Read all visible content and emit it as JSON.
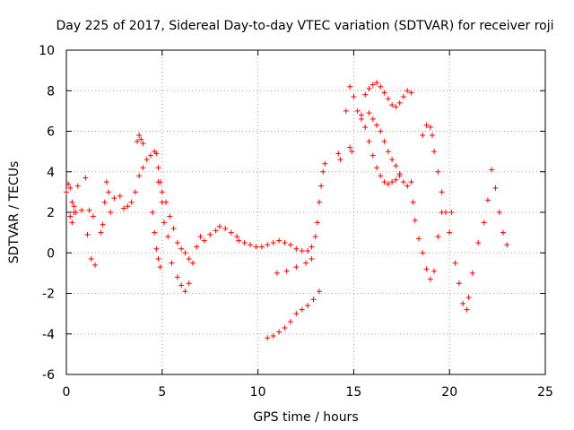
{
  "chart_data": {
    "type": "scatter",
    "title": "Day 225 of 2017, Sidereal Day-to-day VTEC variation (SDTVAR) for receiver roji",
    "xlabel": "GPS time / hours",
    "ylabel": "SDTVAR / TECUs",
    "xlim": [
      0,
      25
    ],
    "ylim": [
      -6,
      10
    ],
    "xticks": [
      "0",
      "5",
      "10",
      "15",
      "20",
      "25"
    ],
    "yticks": [
      "-6",
      "-4",
      "-2",
      "0",
      "2",
      "4",
      "6",
      "8",
      "10"
    ],
    "grid": true,
    "marker": "+",
    "color": "#ff0000",
    "series": [
      {
        "name": "SDTVAR",
        "x": [
          0.0,
          0.1,
          0.2,
          0.3,
          0.4,
          0.2,
          0.3,
          0.4,
          0.5,
          0.6,
          0.8,
          1.0,
          1.1,
          1.2,
          1.3,
          1.4,
          1.5,
          1.8,
          1.9,
          2.0,
          2.1,
          2.2,
          2.3,
          2.5,
          2.8,
          3.0,
          3.2,
          3.4,
          3.6,
          3.8,
          4.0,
          4.2,
          4.4,
          4.6,
          4.7,
          4.8,
          4.9,
          3.7,
          3.8,
          3.9,
          4.0,
          4.5,
          4.6,
          4.7,
          4.8,
          4.9,
          5.0,
          5.1,
          5.3,
          5.5,
          5.8,
          6.0,
          6.2,
          6.4,
          4.8,
          5.0,
          5.2,
          5.4,
          5.6,
          5.8,
          6.0,
          6.2,
          6.4,
          6.6,
          6.8,
          7.0,
          7.2,
          7.5,
          7.8,
          8.0,
          8.3,
          8.6,
          8.9,
          9.0,
          9.3,
          9.6,
          9.9,
          10.2,
          10.5,
          10.8,
          11.1,
          11.4,
          11.7,
          12.0,
          12.3,
          12.6,
          12.8,
          13.0,
          10.5,
          10.8,
          11.1,
          11.4,
          11.7,
          12.0,
          12.3,
          12.6,
          12.9,
          13.2,
          11.0,
          11.5,
          12.0,
          12.5,
          12.8,
          13.1,
          13.2,
          13.3,
          13.4,
          13.5,
          14.2,
          14.3,
          14.8,
          14.9,
          14.6,
          14.8,
          15.0,
          15.2,
          15.4,
          15.6,
          15.8,
          16.0,
          16.2,
          16.4,
          16.6,
          16.8,
          17.0,
          17.2,
          17.4,
          17.6,
          17.8,
          18.0,
          15.4,
          15.6,
          15.8,
          16.0,
          16.2,
          16.4,
          16.6,
          16.8,
          17.0,
          17.2,
          17.4,
          15.8,
          16.0,
          16.2,
          16.4,
          16.6,
          16.8,
          17.0,
          17.2,
          17.4,
          17.6,
          17.8,
          18.0,
          18.1,
          18.2,
          18.4,
          18.6,
          18.8,
          19.0,
          19.2,
          19.4,
          19.6,
          18.6,
          18.8,
          19.0,
          19.1,
          19.2,
          19.4,
          19.6,
          19.8,
          20.0,
          20.1,
          20.3,
          20.5,
          20.7,
          20.9,
          21.0,
          21.2,
          21.5,
          21.8,
          22.0,
          22.2,
          22.4,
          22.6,
          22.8,
          23.0
        ],
        "y": [
          3.0,
          3.4,
          3.2,
          2.5,
          2.0,
          1.8,
          1.5,
          2.3,
          2.0,
          3.3,
          2.1,
          3.7,
          0.9,
          2.1,
          -0.3,
          1.8,
          -0.6,
          1.0,
          1.4,
          2.5,
          3.5,
          3.0,
          2.0,
          2.7,
          2.8,
          2.2,
          2.3,
          2.5,
          3.0,
          3.8,
          4.2,
          4.6,
          4.8,
          5.0,
          4.9,
          4.2,
          3.5,
          5.5,
          5.8,
          5.6,
          5.4,
          2.0,
          1.0,
          0.2,
          -0.3,
          -0.7,
          2.5,
          1.5,
          0.8,
          -0.5,
          -1.2,
          -1.6,
          -1.9,
          -1.5,
          3.5,
          3.0,
          2.5,
          1.8,
          1.2,
          0.5,
          0.2,
          0.0,
          -0.3,
          -0.5,
          0.3,
          0.8,
          0.6,
          0.9,
          1.1,
          1.3,
          1.2,
          1.0,
          0.8,
          0.6,
          0.5,
          0.4,
          0.3,
          0.3,
          0.4,
          0.5,
          0.6,
          0.5,
          0.4,
          0.2,
          0.1,
          0.1,
          0.3,
          0.8,
          -4.2,
          -4.1,
          -3.9,
          -3.7,
          -3.4,
          -3.0,
          -2.8,
          -2.6,
          -2.3,
          -1.9,
          -1.0,
          -0.9,
          -0.7,
          -0.5,
          -0.3,
          1.5,
          2.5,
          3.3,
          4.0,
          4.4,
          4.9,
          4.6,
          5.2,
          5.0,
          7.0,
          8.2,
          7.7,
          7.0,
          6.6,
          7.8,
          8.1,
          8.3,
          8.4,
          8.2,
          7.9,
          7.6,
          7.3,
          7.2,
          7.4,
          7.7,
          8.0,
          7.9,
          6.8,
          6.2,
          5.5,
          4.8,
          4.2,
          3.8,
          3.5,
          3.4,
          3.5,
          3.6,
          3.9,
          6.9,
          6.6,
          6.3,
          6.0,
          5.5,
          5.0,
          4.6,
          4.3,
          3.8,
          3.5,
          3.3,
          3.5,
          2.5,
          1.6,
          0.7,
          0.0,
          -0.8,
          -1.3,
          -0.9,
          0.8,
          2.0,
          5.8,
          6.3,
          6.2,
          5.8,
          5.0,
          4.0,
          3.0,
          2.0,
          1.0,
          2.0,
          -0.5,
          -1.5,
          -2.5,
          -2.8,
          -2.2,
          -1.0,
          0.5,
          1.5,
          2.6,
          4.1,
          3.2,
          2.0,
          1.0,
          0.4
        ]
      }
    ]
  }
}
